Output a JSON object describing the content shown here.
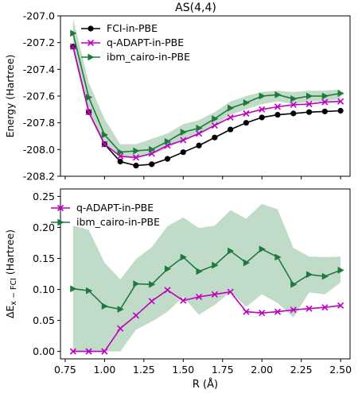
{
  "figure": {
    "title": "AS(4,4)"
  },
  "colors": {
    "fci": "#000000",
    "qadapt": "#c000c0",
    "ibm": "#1e7a3c",
    "band": "#b5d6be"
  },
  "chart_data": [
    {
      "type": "line",
      "title": "AS(4,4)",
      "xlabel": "",
      "ylabel": "Energy (Hartree)",
      "xlim": [
        0.72,
        2.56
      ],
      "ylim": [
        -208.2,
        -207.0
      ],
      "yticks": [
        -207.0,
        -207.2,
        -207.4,
        -207.6,
        -207.8,
        -208.0,
        -208.2
      ],
      "yticklabels": [
        "-207.0",
        "-207.2",
        "-207.4",
        "-207.6",
        "-207.8",
        "-208.0",
        "-208.2"
      ],
      "legend_position": "top-center",
      "x": [
        0.8,
        0.9,
        1.0,
        1.1,
        1.2,
        1.3,
        1.4,
        1.5,
        1.6,
        1.7,
        1.8,
        1.9,
        2.0,
        2.1,
        2.2,
        2.3,
        2.4,
        2.5
      ],
      "series": [
        {
          "name": "FCI-in-PBE",
          "marker": "circle",
          "values": [
            -207.23,
            -207.72,
            -207.96,
            -208.09,
            -208.12,
            -208.11,
            -208.07,
            -208.02,
            -207.97,
            -207.91,
            -207.85,
            -207.8,
            -207.76,
            -207.74,
            -207.73,
            -207.72,
            -207.715,
            -207.71
          ]
        },
        {
          "name": "q-ADAPT-in-PBE",
          "marker": "x",
          "values": [
            -207.23,
            -207.72,
            -207.96,
            -208.05,
            -208.06,
            -208.03,
            -207.97,
            -207.93,
            -207.88,
            -207.82,
            -207.76,
            -207.73,
            -207.7,
            -207.68,
            -207.665,
            -207.66,
            -207.645,
            -207.64
          ]
        },
        {
          "name": "ibm_cairo-in-PBE",
          "marker": "triangle-right",
          "values": [
            -207.13,
            -207.61,
            -207.89,
            -208.02,
            -208.01,
            -208.0,
            -207.94,
            -207.87,
            -207.84,
            -207.77,
            -207.69,
            -207.65,
            -207.6,
            -207.59,
            -207.62,
            -207.6,
            -207.6,
            -207.58
          ],
          "band_upper": [
            -207.02,
            -207.5,
            -207.77,
            -207.96,
            -207.96,
            -207.92,
            -207.88,
            -207.81,
            -207.78,
            -207.72,
            -207.64,
            -207.6,
            -207.57,
            -207.56,
            -207.57,
            -207.56,
            -207.56,
            -207.55
          ],
          "band_lower": [
            -207.24,
            -207.7,
            -207.96,
            -208.06,
            -208.06,
            -208.04,
            -207.99,
            -207.93,
            -207.89,
            -207.82,
            -207.74,
            -207.7,
            -207.66,
            -207.64,
            -207.66,
            -207.64,
            -207.64,
            -207.62
          ]
        }
      ]
    },
    {
      "type": "line",
      "title": "",
      "xlabel": "R (Å)",
      "ylabel": "ΔE",
      "ylabel_sub": "x − FCI",
      "ylabel_unit": " (Hartree)",
      "xlim": [
        0.72,
        2.56
      ],
      "ylim": [
        -0.012,
        0.262
      ],
      "xticks": [
        0.75,
        1.0,
        1.25,
        1.5,
        1.75,
        2.0,
        2.25,
        2.5
      ],
      "xticklabels": [
        "0.75",
        "1.00",
        "1.25",
        "1.50",
        "1.75",
        "2.00",
        "2.25",
        "2.50"
      ],
      "yticks": [
        0.0,
        0.05,
        0.1,
        0.15,
        0.2,
        0.25
      ],
      "yticklabels": [
        "0.00",
        "0.05",
        "0.10",
        "0.15",
        "0.20",
        "0.25"
      ],
      "legend_position": "top-left",
      "x": [
        0.8,
        0.9,
        1.0,
        1.1,
        1.2,
        1.3,
        1.4,
        1.5,
        1.6,
        1.7,
        1.8,
        1.9,
        2.0,
        2.1,
        2.2,
        2.3,
        2.4,
        2.5
      ],
      "series": [
        {
          "name": "q-ADAPT-in-PBE",
          "marker": "x",
          "values": [
            0.0,
            0.0,
            0.0,
            0.037,
            0.058,
            0.081,
            0.099,
            0.082,
            0.088,
            0.092,
            0.096,
            0.064,
            0.062,
            0.064,
            0.067,
            0.069,
            0.071,
            0.074
          ]
        },
        {
          "name": "ibm_cairo-in-PBE",
          "marker": "triangle-right",
          "values": [
            0.101,
            0.098,
            0.073,
            0.068,
            0.109,
            0.108,
            0.133,
            0.152,
            0.129,
            0.139,
            0.162,
            0.143,
            0.165,
            0.152,
            0.108,
            0.124,
            0.121,
            0.131
          ],
          "band_upper": [
            0.203,
            0.196,
            0.143,
            0.116,
            0.149,
            0.168,
            0.202,
            0.216,
            0.199,
            0.203,
            0.228,
            0.214,
            0.238,
            0.229,
            0.167,
            0.153,
            0.152,
            0.153
          ],
          "band_lower": [
            0.0,
            0.0,
            0.0,
            0.0,
            0.035,
            0.048,
            0.064,
            0.088,
            0.059,
            0.075,
            0.096,
            0.072,
            0.092,
            0.078,
            0.055,
            0.095,
            0.092,
            0.111
          ]
        }
      ]
    }
  ]
}
